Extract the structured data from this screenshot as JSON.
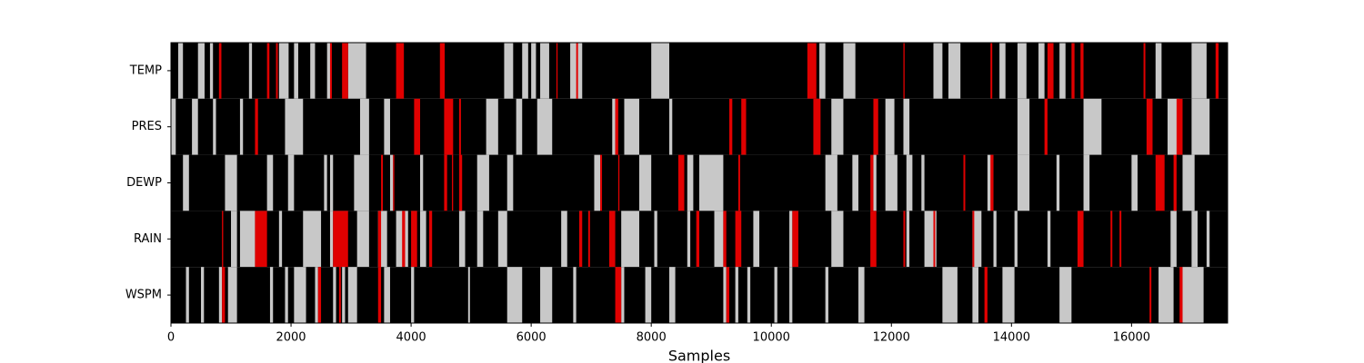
{
  "chart_data": {
    "type": "state-raster",
    "categories": [
      "TEMP",
      "PRES",
      "DEWP",
      "RAIN",
      "WSPM"
    ],
    "xlabel": "Samples",
    "xlim": [
      0,
      17600
    ],
    "xticks": [
      0,
      2000,
      4000,
      6000,
      8000,
      10000,
      12000,
      14000,
      16000
    ],
    "background": "#000000",
    "series": [
      {
        "color": "#c8c8c8",
        "intervals": [
          [
            [
              120,
              200
            ],
            [
              450,
              560
            ],
            [
              650,
              700
            ],
            [
              1300,
              1350
            ],
            [
              1800,
              1960
            ],
            [
              2050,
              2120
            ],
            [
              2320,
              2400
            ],
            [
              2600,
              2660
            ],
            [
              2950,
              3250
            ],
            [
              5550,
              5700
            ],
            [
              5850,
              5950
            ],
            [
              6000,
              6080
            ],
            [
              6150,
              6300
            ],
            [
              6650,
              6850
            ],
            [
              8000,
              8300
            ],
            [
              10800,
              10900
            ],
            [
              11200,
              11400
            ],
            [
              12700,
              12850
            ],
            [
              12950,
              13150
            ],
            [
              13800,
              13900
            ],
            [
              14100,
              14250
            ],
            [
              14450,
              14550
            ],
            [
              14800,
              14900
            ],
            [
              16400,
              16500
            ],
            [
              17000,
              17250
            ]
          ],
          [
            [
              0,
              80
            ],
            [
              350,
              450
            ],
            [
              700,
              750
            ],
            [
              1150,
              1200
            ],
            [
              1900,
              2200
            ],
            [
              3150,
              3300
            ],
            [
              3550,
              3650
            ],
            [
              5250,
              5450
            ],
            [
              5750,
              5850
            ],
            [
              6100,
              6350
            ],
            [
              7350,
              7400
            ],
            [
              7550,
              7800
            ],
            [
              8300,
              8350
            ],
            [
              11000,
              11200
            ],
            [
              11900,
              12050
            ],
            [
              12200,
              12300
            ],
            [
              14100,
              14300
            ],
            [
              15200,
              15500
            ],
            [
              16600,
              16800
            ],
            [
              17000,
              17300
            ]
          ],
          [
            [
              200,
              300
            ],
            [
              900,
              1100
            ],
            [
              1600,
              1700
            ],
            [
              1950,
              2050
            ],
            [
              2550,
              2600
            ],
            [
              2650,
              2700
            ],
            [
              3050,
              3300
            ],
            [
              3650,
              3700
            ],
            [
              4150,
              4200
            ],
            [
              5100,
              5300
            ],
            [
              5600,
              5700
            ],
            [
              7050,
              7150
            ],
            [
              7800,
              8000
            ],
            [
              8600,
              8700
            ],
            [
              8800,
              9200
            ],
            [
              10900,
              11100
            ],
            [
              11350,
              11450
            ],
            [
              11700,
              11750
            ],
            [
              11900,
              12100
            ],
            [
              12250,
              12350
            ],
            [
              12500,
              12550
            ],
            [
              13600,
              13700
            ],
            [
              14100,
              14300
            ],
            [
              14750,
              14800
            ],
            [
              15200,
              15300
            ],
            [
              16000,
              16100
            ],
            [
              16850,
              17050
            ]
          ],
          [
            [
              1000,
              1100
            ],
            [
              1150,
              1400
            ],
            [
              1800,
              1850
            ],
            [
              2200,
              2500
            ],
            [
              2650,
              2700
            ],
            [
              3100,
              3300
            ],
            [
              3450,
              3600
            ],
            [
              3750,
              3950
            ],
            [
              4150,
              4250
            ],
            [
              4800,
              4900
            ],
            [
              5100,
              5200
            ],
            [
              5450,
              5600
            ],
            [
              6500,
              6600
            ],
            [
              7500,
              7800
            ],
            [
              8050,
              8100
            ],
            [
              8600,
              8650
            ],
            [
              9050,
              9200
            ],
            [
              9700,
              9800
            ],
            [
              10300,
              10350
            ],
            [
              11000,
              11200
            ],
            [
              12250,
              12300
            ],
            [
              12550,
              12750
            ],
            [
              13350,
              13500
            ],
            [
              13700,
              13750
            ],
            [
              14050,
              14100
            ],
            [
              14600,
              14650
            ],
            [
              16650,
              16750
            ],
            [
              17000,
              17100
            ],
            [
              17250,
              17300
            ]
          ],
          [
            [
              250,
              300
            ],
            [
              500,
              550
            ],
            [
              800,
              850
            ],
            [
              950,
              1100
            ],
            [
              1650,
              1700
            ],
            [
              1900,
              1950
            ],
            [
              2050,
              2250
            ],
            [
              2400,
              2450
            ],
            [
              2700,
              2750
            ],
            [
              2850,
              2900
            ],
            [
              2950,
              3100
            ],
            [
              3550,
              3650
            ],
            [
              4000,
              4050
            ],
            [
              4950,
              4980
            ],
            [
              5600,
              5850
            ],
            [
              6150,
              6350
            ],
            [
              6700,
              6750
            ],
            [
              7500,
              7550
            ],
            [
              7900,
              8000
            ],
            [
              8300,
              8400
            ],
            [
              9200,
              9250
            ],
            [
              9400,
              9450
            ],
            [
              9600,
              9650
            ],
            [
              10050,
              10100
            ],
            [
              10300,
              10350
            ],
            [
              10900,
              10950
            ],
            [
              11450,
              11550
            ],
            [
              12850,
              13100
            ],
            [
              13350,
              13450
            ],
            [
              13850,
              14050
            ],
            [
              14800,
              15000
            ],
            [
              16450,
              16700
            ],
            [
              16850,
              17200
            ]
          ]
        ]
      },
      {
        "color": "#e00000",
        "intervals": [
          [
            [
              800,
              840
            ],
            [
              1600,
              1640
            ],
            [
              1750,
              1780
            ],
            [
              2650,
              2680
            ],
            [
              2850,
              2950
            ],
            [
              3750,
              3880
            ],
            [
              4480,
              4560
            ],
            [
              6420,
              6440
            ],
            [
              6750,
              6780
            ],
            [
              10600,
              10750
            ],
            [
              12200,
              12220
            ],
            [
              13650,
              13680
            ],
            [
              14600,
              14700
            ],
            [
              15000,
              15050
            ],
            [
              15150,
              15200
            ],
            [
              16200,
              16230
            ],
            [
              17400,
              17450
            ]
          ],
          [
            [
              1400,
              1450
            ],
            [
              4050,
              4150
            ],
            [
              4550,
              4700
            ],
            [
              4800,
              4830
            ],
            [
              7400,
              7450
            ],
            [
              9300,
              9350
            ],
            [
              9500,
              9580
            ],
            [
              10700,
              10820
            ],
            [
              11700,
              11780
            ],
            [
              14550,
              14600
            ],
            [
              16250,
              16350
            ],
            [
              16750,
              16850
            ]
          ],
          [
            [
              3500,
              3530
            ],
            [
              3700,
              3720
            ],
            [
              4550,
              4600
            ],
            [
              4680,
              4700
            ],
            [
              4800,
              4850
            ],
            [
              7150,
              7180
            ],
            [
              7450,
              7470
            ],
            [
              8450,
              8550
            ],
            [
              9450,
              9480
            ],
            [
              11650,
              11700
            ],
            [
              13200,
              13230
            ],
            [
              13650,
              13700
            ],
            [
              16400,
              16550
            ],
            [
              16700,
              16750
            ]
          ],
          [
            [
              850,
              870
            ],
            [
              1400,
              1600
            ],
            [
              2700,
              2950
            ],
            [
              3450,
              3500
            ],
            [
              3850,
              3900
            ],
            [
              4000,
              4100
            ],
            [
              4300,
              4350
            ],
            [
              6800,
              6850
            ],
            [
              6950,
              6980
            ],
            [
              7300,
              7400
            ],
            [
              8750,
              8800
            ],
            [
              9200,
              9250
            ],
            [
              9400,
              9500
            ],
            [
              10350,
              10450
            ],
            [
              11650,
              11750
            ],
            [
              12200,
              12230
            ],
            [
              12700,
              12730
            ],
            [
              13350,
              13380
            ],
            [
              15100,
              15200
            ],
            [
              15650,
              15680
            ],
            [
              15800,
              15830
            ]
          ],
          [
            [
              850,
              900
            ],
            [
              2450,
              2500
            ],
            [
              2800,
              2830
            ],
            [
              3450,
              3500
            ],
            [
              7400,
              7500
            ],
            [
              9250,
              9300
            ],
            [
              13550,
              13600
            ],
            [
              16300,
              16330
            ],
            [
              16800,
              16850
            ]
          ]
        ]
      }
    ]
  }
}
